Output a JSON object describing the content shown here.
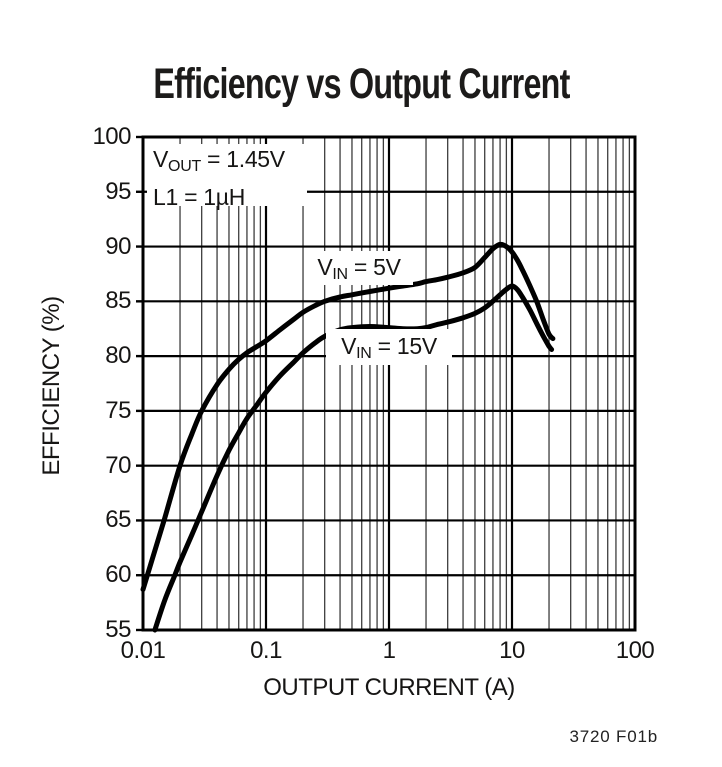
{
  "fig_label": "3720 F01b",
  "colors": {
    "background": "#ffffff",
    "curve": "#000000",
    "major_grid": "#000000",
    "minor_grid": "#3d3d3d",
    "text": "#161514"
  },
  "annotation": {
    "line1_prefix": "V",
    "line1_sub": "OUT",
    "line1_rest": " = 1.45V",
    "line2": "L1 = 1µH"
  },
  "chart_data": {
    "type": "line",
    "title": "Efficiency vs Output Current",
    "xlabel": "OUTPUT CURRENT (A)",
    "ylabel": "EFFICIENCY (%)",
    "x_scale": "log",
    "xlim": [
      0.01,
      100
    ],
    "ylim": [
      55,
      100
    ],
    "x_ticks": [
      0.01,
      0.1,
      1,
      10,
      100
    ],
    "x_tick_labels": [
      "0.01",
      "0.1",
      "1",
      "10",
      "100"
    ],
    "y_ticks": [
      55,
      60,
      65,
      70,
      75,
      80,
      85,
      90,
      95,
      100
    ],
    "grid": "major both axes, minor log grid on x, full-height",
    "legend_position": "inline curve labels",
    "series": [
      {
        "name": "VIN = 5V",
        "label": {
          "prefix": "V",
          "sub": "IN",
          "rest": " = 5V"
        },
        "points": [
          [
            0.01,
            58.7
          ],
          [
            0.012,
            61.6
          ],
          [
            0.015,
            65.2
          ],
          [
            0.02,
            70.0
          ],
          [
            0.025,
            72.9
          ],
          [
            0.03,
            75.0
          ],
          [
            0.04,
            77.4
          ],
          [
            0.05,
            78.8
          ],
          [
            0.06,
            79.7
          ],
          [
            0.07,
            80.3
          ],
          [
            0.085,
            80.9
          ],
          [
            0.1,
            81.4
          ],
          [
            0.13,
            82.4
          ],
          [
            0.17,
            83.4
          ],
          [
            0.2,
            84.0
          ],
          [
            0.25,
            84.6
          ],
          [
            0.3,
            85.0
          ],
          [
            0.4,
            85.4
          ],
          [
            0.5,
            85.6
          ],
          [
            0.7,
            85.9
          ],
          [
            1,
            86.2
          ],
          [
            1.3,
            86.4
          ],
          [
            1.7,
            86.6
          ],
          [
            2,
            86.8
          ],
          [
            2.5,
            87.0
          ],
          [
            3,
            87.2
          ],
          [
            4,
            87.6
          ],
          [
            5,
            88.1
          ],
          [
            6,
            89.0
          ],
          [
            7,
            89.8
          ],
          [
            8,
            90.2
          ],
          [
            9,
            90.0
          ],
          [
            10,
            89.5
          ],
          [
            11,
            88.8
          ],
          [
            12,
            88.0
          ],
          [
            14,
            86.4
          ],
          [
            16,
            84.9
          ],
          [
            18,
            83.3
          ],
          [
            20,
            82.0
          ],
          [
            21.5,
            81.6
          ]
        ]
      },
      {
        "name": "VIN = 15V",
        "label": {
          "prefix": "V",
          "sub": "IN",
          "rest": " = 15V"
        },
        "points": [
          [
            0.0125,
            55.0
          ],
          [
            0.015,
            57.7
          ],
          [
            0.018,
            59.9
          ],
          [
            0.02,
            61.2
          ],
          [
            0.025,
            63.7
          ],
          [
            0.03,
            65.8
          ],
          [
            0.04,
            69.1
          ],
          [
            0.05,
            71.4
          ],
          [
            0.06,
            73.0
          ],
          [
            0.07,
            74.3
          ],
          [
            0.085,
            75.6
          ],
          [
            0.1,
            76.7
          ],
          [
            0.13,
            78.2
          ],
          [
            0.17,
            79.5
          ],
          [
            0.2,
            80.3
          ],
          [
            0.25,
            81.2
          ],
          [
            0.3,
            81.8
          ],
          [
            0.4,
            82.4
          ],
          [
            0.5,
            82.6
          ],
          [
            0.7,
            82.7
          ],
          [
            1,
            82.6
          ],
          [
            1.3,
            82.5
          ],
          [
            1.7,
            82.5
          ],
          [
            2,
            82.6
          ],
          [
            2.5,
            82.9
          ],
          [
            3,
            83.1
          ],
          [
            4,
            83.5
          ],
          [
            5,
            83.9
          ],
          [
            6,
            84.4
          ],
          [
            7,
            85.0
          ],
          [
            8,
            85.6
          ],
          [
            9,
            86.1
          ],
          [
            10,
            86.4
          ],
          [
            11,
            86.1
          ],
          [
            12,
            85.5
          ],
          [
            14,
            84.2
          ],
          [
            16,
            82.9
          ],
          [
            18,
            81.8
          ],
          [
            20,
            80.9
          ],
          [
            21,
            80.6
          ]
        ]
      }
    ]
  }
}
